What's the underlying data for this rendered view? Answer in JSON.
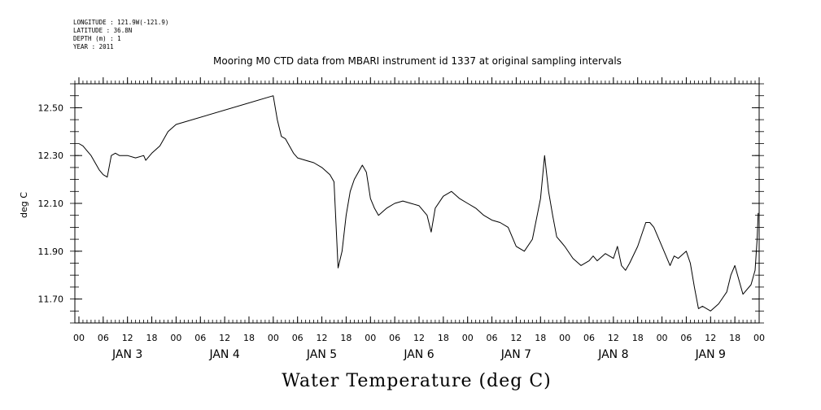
{
  "header": {
    "meta_lines": [
      "LONGITUDE : 121.9W(-121.9)",
      "LATITUDE : 36.8N",
      "DEPTH (m) : 1",
      "YEAR : 2011"
    ]
  },
  "footer_title": "Water Temperature (deg C)",
  "chart_data": {
    "type": "line",
    "title": "Mooring M0 CTD data from MBARI instrument id 1337 at original sampling intervals",
    "ylabel": "deg C",
    "xlabel": "",
    "ylim": [
      11.6,
      12.6
    ],
    "xlim": [
      "2011-01-02T23:00",
      "2011-01-10T00:00"
    ],
    "y_ticks": [
      "12.50",
      "12.30",
      "12.10",
      "11.90",
      "11.70"
    ],
    "x_hour_ticks": [
      "00",
      "06",
      "12",
      "18",
      "00",
      "06",
      "12",
      "18",
      "00",
      "06",
      "12",
      "18",
      "00",
      "06",
      "12",
      "18",
      "00",
      "06",
      "12",
      "18",
      "00",
      "06",
      "12",
      "18",
      "00",
      "06",
      "12",
      "18",
      "00"
    ],
    "x_day_labels": [
      "JAN 3",
      "JAN 4",
      "JAN 5",
      "JAN 6",
      "JAN 7",
      "JAN 8",
      "JAN 9"
    ],
    "grid": false,
    "series": [
      {
        "x": [
          "2011-01-03T00:00",
          "2011-01-03T01:00",
          "2011-01-03T02:00",
          "2011-01-03T03:00",
          "2011-01-03T04:00",
          "2011-01-03T05:00",
          "2011-01-03T06:00",
          "2011-01-03T07:00",
          "2011-01-03T08:00",
          "2011-01-03T09:00",
          "2011-01-03T10:00",
          "2011-01-03T12:00",
          "2011-01-03T14:00",
          "2011-01-03T16:00",
          "2011-01-03T16:30",
          "2011-01-03T18:00",
          "2011-01-03T20:00",
          "2011-01-03T22:00",
          "2011-01-04T00:00",
          "2011-01-05T00:00",
          "2011-01-05T01:00",
          "2011-01-05T02:00",
          "2011-01-05T03:00",
          "2011-01-05T04:00",
          "2011-01-05T05:00",
          "2011-01-05T06:00",
          "2011-01-05T08:00",
          "2011-01-05T10:00",
          "2011-01-05T12:00",
          "2011-01-05T14:00",
          "2011-01-05T15:00",
          "2011-01-05T16:00",
          "2011-01-05T17:00",
          "2011-01-05T18:00",
          "2011-01-05T19:00",
          "2011-01-05T20:00",
          "2011-01-05T22:00",
          "2011-01-05T23:00",
          "2011-01-06T00:00",
          "2011-01-06T01:00",
          "2011-01-06T02:00",
          "2011-01-06T04:00",
          "2011-01-06T06:00",
          "2011-01-06T08:00",
          "2011-01-06T10:00",
          "2011-01-06T12:00",
          "2011-01-06T14:00",
          "2011-01-06T15:00",
          "2011-01-06T16:00",
          "2011-01-06T18:00",
          "2011-01-06T20:00",
          "2011-01-06T22:00",
          "2011-01-07T00:00",
          "2011-01-07T02:00",
          "2011-01-07T04:00",
          "2011-01-07T06:00",
          "2011-01-07T08:00",
          "2011-01-07T10:00",
          "2011-01-07T12:00",
          "2011-01-07T14:00",
          "2011-01-07T16:00",
          "2011-01-07T18:00",
          "2011-01-07T19:00",
          "2011-01-07T20:00",
          "2011-01-07T21:00",
          "2011-01-07T22:00",
          "2011-01-07T23:00",
          "2011-01-08T00:00",
          "2011-01-08T02:00",
          "2011-01-08T04:00",
          "2011-01-08T06:00",
          "2011-01-08T07:00",
          "2011-01-08T08:00",
          "2011-01-08T10:00",
          "2011-01-08T12:00",
          "2011-01-08T13:00",
          "2011-01-08T14:00",
          "2011-01-08T15:00",
          "2011-01-08T16:00",
          "2011-01-08T18:00",
          "2011-01-08T20:00",
          "2011-01-08T21:00",
          "2011-01-08T22:00",
          "2011-01-09T00:00",
          "2011-01-09T02:00",
          "2011-01-09T03:00",
          "2011-01-09T04:00",
          "2011-01-09T06:00",
          "2011-01-09T07:00",
          "2011-01-09T08:00",
          "2011-01-09T09:00",
          "2011-01-09T10:00",
          "2011-01-09T12:00",
          "2011-01-09T14:00",
          "2011-01-09T16:00",
          "2011-01-09T17:00",
          "2011-01-09T18:00",
          "2011-01-09T20:00",
          "2011-01-09T22:00",
          "2011-01-09T23:00",
          "2011-01-09T23:30",
          "2011-01-09T23:45"
        ],
        "y": [
          12.35,
          12.34,
          12.32,
          12.3,
          12.27,
          12.24,
          12.22,
          12.21,
          12.3,
          12.31,
          12.3,
          12.3,
          12.29,
          12.3,
          12.28,
          12.31,
          12.34,
          12.4,
          12.43,
          12.55,
          12.45,
          12.38,
          12.37,
          12.34,
          12.31,
          12.29,
          12.28,
          12.27,
          12.25,
          12.22,
          12.19,
          11.83,
          11.9,
          12.05,
          12.15,
          12.2,
          12.26,
          12.23,
          12.12,
          12.08,
          12.05,
          12.08,
          12.1,
          12.11,
          12.1,
          12.09,
          12.05,
          11.98,
          12.08,
          12.13,
          12.15,
          12.12,
          12.1,
          12.08,
          12.05,
          12.03,
          12.02,
          12.0,
          11.92,
          11.9,
          11.95,
          12.12,
          12.3,
          12.15,
          12.05,
          11.96,
          11.94,
          11.92,
          11.87,
          11.84,
          11.86,
          11.88,
          11.86,
          11.89,
          11.87,
          11.92,
          11.84,
          11.82,
          11.85,
          11.92,
          12.02,
          12.02,
          12.0,
          11.92,
          11.84,
          11.88,
          11.87,
          11.9,
          11.85,
          11.75,
          11.66,
          11.67,
          11.65,
          11.68,
          11.73,
          11.8,
          11.84,
          11.72,
          11.76,
          11.82,
          11.95,
          12.06
        ]
      }
    ]
  }
}
